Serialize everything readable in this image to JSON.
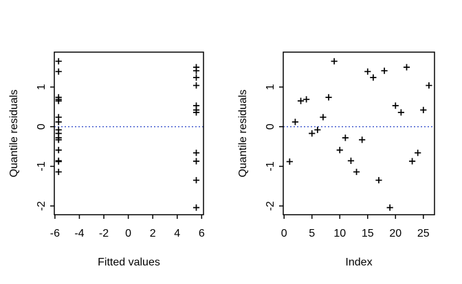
{
  "figure": {
    "background": "#ffffff",
    "marker_glyph": "+",
    "marker_color": "#000000",
    "axis_color": "#000000",
    "reference_line_color": "#3a52cc"
  },
  "chart_data": [
    {
      "type": "scatter",
      "title": "",
      "xlabel": "Fitted values",
      "ylabel": "Quantile residuals",
      "marker": "plus",
      "grid": false,
      "legend": "none",
      "xticks": [
        -6,
        -4,
        -2,
        0,
        2,
        4,
        6
      ],
      "yticks": [
        -2,
        -1,
        0,
        1
      ],
      "xlim": [
        -6.05,
        6.15
      ],
      "ylim": [
        -2.22,
        1.88
      ],
      "ref_line": {
        "y": 0,
        "style": "dotted",
        "color": "#3a52cc"
      },
      "groups": [
        {
          "fitted": -5.7,
          "residuals": [
            1.65,
            1.39,
            0.74,
            0.69,
            0.65,
            0.24,
            0.12,
            -0.08,
            -0.17,
            -0.28,
            -0.33,
            -0.59,
            -0.86,
            -0.88,
            -1.14
          ]
        },
        {
          "fitted": 5.56,
          "residuals": [
            1.5,
            1.41,
            1.24,
            1.04,
            0.53,
            0.42,
            0.36,
            -0.66,
            -0.87,
            -1.35,
            -2.04
          ]
        }
      ]
    },
    {
      "type": "scatter",
      "title": "",
      "xlabel": "Index",
      "ylabel": "Quantile residuals",
      "marker": "plus",
      "grid": false,
      "legend": "none",
      "xticks": [
        0,
        5,
        10,
        15,
        20,
        25
      ],
      "yticks": [
        -2,
        -1,
        0,
        1
      ],
      "xlim": [
        -0.15,
        27
      ],
      "ylim": [
        -2.22,
        1.88
      ],
      "ref_line": {
        "y": 0,
        "style": "dotted",
        "color": "#3a52cc"
      },
      "index": [
        1,
        2,
        3,
        4,
        5,
        6,
        7,
        8,
        9,
        10,
        11,
        12,
        13,
        14,
        15,
        16,
        17,
        18,
        19,
        20,
        21,
        22,
        23,
        24,
        25,
        26
      ],
      "residuals": [
        -0.88,
        0.12,
        0.65,
        0.69,
        -0.17,
        -0.08,
        0.24,
        0.74,
        1.65,
        -0.59,
        -0.28,
        -0.86,
        -1.14,
        -0.33,
        1.39,
        1.24,
        -1.35,
        1.41,
        -2.04,
        0.53,
        0.36,
        1.5,
        -0.87,
        -0.66,
        0.42,
        1.04
      ]
    }
  ]
}
